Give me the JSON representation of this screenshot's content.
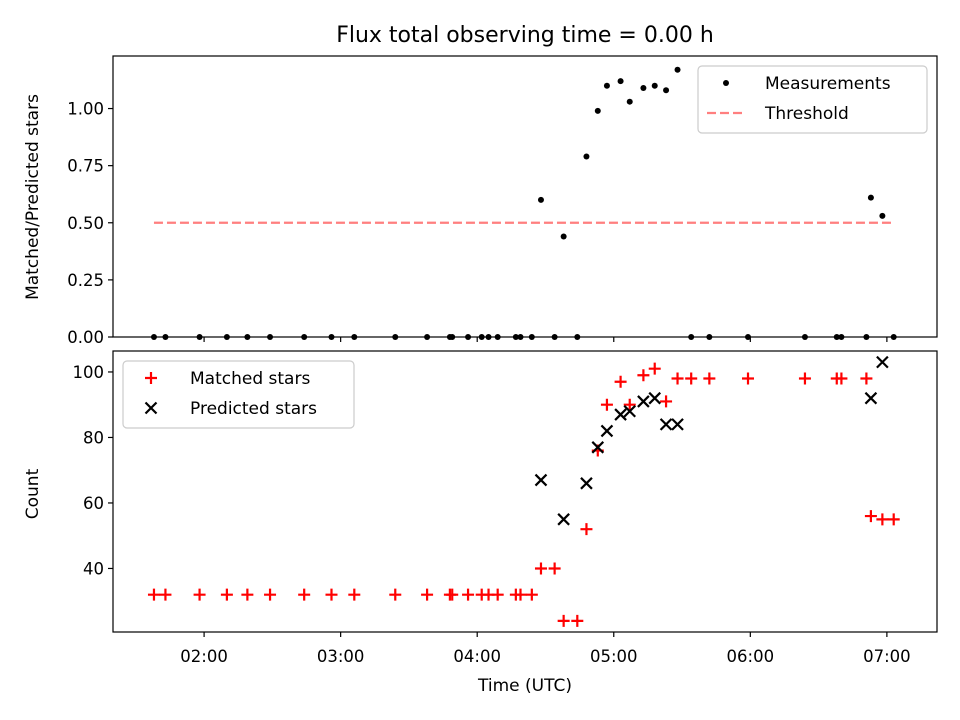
{
  "chart_data": [
    {
      "type": "scatter",
      "title": "Flux total observing time = 0.00 h",
      "xlabel": "",
      "ylabel": "Matched/Predicted stars",
      "xlim": [
        1.333,
        7.367
      ],
      "ylim": [
        0,
        1.23
      ],
      "yticks": [
        0.0,
        0.25,
        0.5,
        0.75,
        1.0
      ],
      "ytick_labels": [
        "0.00",
        "0.25",
        "0.50",
        "0.75",
        "1.00"
      ],
      "legend_position": "upper right",
      "series": [
        {
          "name": "Measurements",
          "kind": "scatter",
          "color": "#000000",
          "marker": "dot",
          "x": [
            1.633,
            1.717,
            1.967,
            2.167,
            2.317,
            2.483,
            2.733,
            2.933,
            3.1,
            3.4,
            3.633,
            3.8,
            3.817,
            3.933,
            4.033,
            4.083,
            4.15,
            4.283,
            4.317,
            4.4,
            4.467,
            4.567,
            4.633,
            4.733,
            4.8,
            4.883,
            4.95,
            5.05,
            5.117,
            5.217,
            5.3,
            5.383,
            5.467,
            5.567,
            5.7,
            5.983,
            6.4,
            6.633,
            6.667,
            6.85,
            6.883,
            6.967,
            7.05
          ],
          "y": [
            0,
            0,
            0,
            0,
            0,
            0,
            0,
            0,
            0,
            0,
            0,
            0,
            0,
            0,
            0,
            0,
            0,
            0,
            0,
            0,
            0.6,
            0,
            0.44,
            0,
            0.79,
            0.99,
            1.1,
            1.12,
            1.03,
            1.09,
            1.1,
            1.08,
            1.17,
            0,
            0,
            0,
            0,
            0,
            0,
            0,
            0.61,
            0.53,
            0
          ]
        },
        {
          "name": "Threshold",
          "kind": "line",
          "color": "#ff7f7f",
          "dash": "dashed",
          "x": [
            1.633,
            7.05
          ],
          "y": [
            0.5,
            0.5
          ]
        }
      ]
    },
    {
      "type": "scatter",
      "title": "",
      "xlabel": "Time (UTC)",
      "ylabel": "Count",
      "xlim": [
        1.333,
        7.367
      ],
      "ylim": [
        20.6,
        106.4
      ],
      "xticks": [
        2,
        3,
        4,
        5,
        6,
        7
      ],
      "xtick_labels": [
        "02:00",
        "03:00",
        "04:00",
        "05:00",
        "06:00",
        "07:00"
      ],
      "yticks": [
        40,
        60,
        80,
        100
      ],
      "ytick_labels": [
        "40",
        "60",
        "80",
        "100"
      ],
      "legend_position": "upper left",
      "series": [
        {
          "name": "Matched stars",
          "kind": "scatter",
          "color": "#ff0000",
          "marker": "plus",
          "x": [
            1.633,
            1.717,
            1.967,
            2.167,
            2.317,
            2.483,
            2.733,
            2.933,
            3.1,
            3.4,
            3.633,
            3.8,
            3.817,
            3.933,
            4.033,
            4.083,
            4.15,
            4.283,
            4.317,
            4.4,
            4.467,
            4.567,
            4.633,
            4.733,
            4.8,
            4.883,
            4.95,
            5.05,
            5.117,
            5.217,
            5.3,
            5.383,
            5.467,
            5.567,
            5.7,
            5.983,
            6.4,
            6.633,
            6.667,
            6.85,
            6.883,
            6.967,
            7.05
          ],
          "y": [
            32,
            32,
            32,
            32,
            32,
            32,
            32,
            32,
            32,
            32,
            32,
            32,
            32,
            32,
            32,
            32,
            32,
            32,
            32,
            32,
            40,
            40,
            24,
            24,
            52,
            76,
            90,
            97,
            90,
            99,
            101,
            91,
            98,
            98,
            98,
            98,
            98,
            98,
            98,
            98,
            56,
            55,
            55
          ]
        },
        {
          "name": "Predicted stars",
          "kind": "scatter",
          "color": "#000000",
          "marker": "x",
          "x": [
            4.467,
            4.633,
            4.8,
            4.883,
            4.95,
            5.05,
            5.117,
            5.217,
            5.3,
            5.383,
            5.467,
            6.883,
            6.967
          ],
          "y": [
            67,
            55,
            66,
            77,
            82,
            87,
            88,
            91,
            92,
            84,
            84,
            92,
            103
          ]
        }
      ]
    }
  ]
}
